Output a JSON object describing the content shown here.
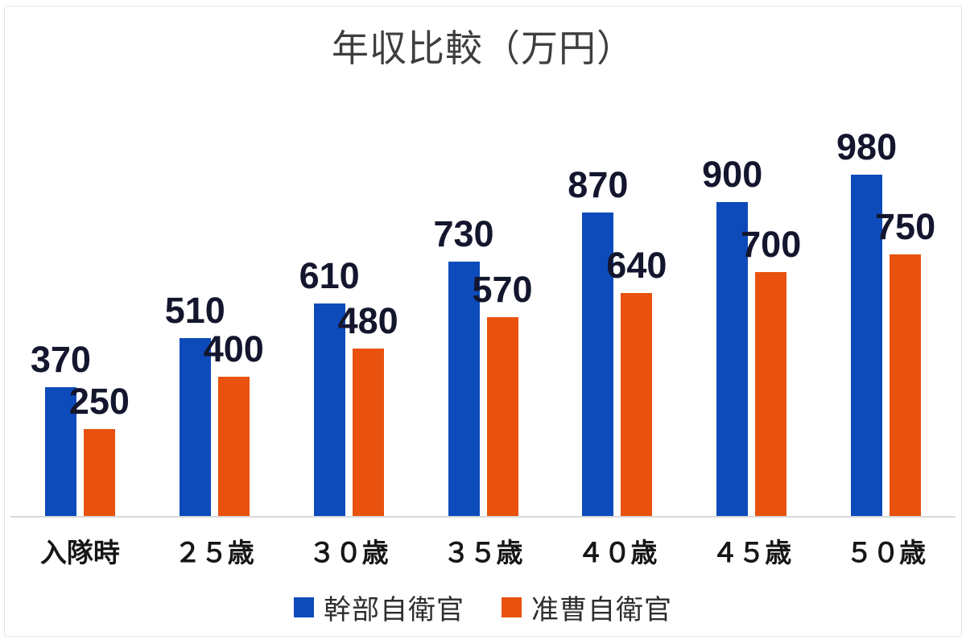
{
  "chart_data": {
    "type": "bar",
    "title": "年収比較（万円）",
    "categories": [
      "入隊時",
      "２５歳",
      "３０歳",
      "３５歳",
      "４０歳",
      "４５歳",
      "５０歳"
    ],
    "series": [
      {
        "name": "幹部自衛官",
        "color": "#0d4bbb",
        "values": [
          370,
          510,
          610,
          730,
          870,
          900,
          980
        ]
      },
      {
        "name": "准曹自衛官",
        "color": "#e8520e",
        "values": [
          250,
          400,
          480,
          570,
          640,
          700,
          750
        ]
      }
    ],
    "xlabel": "",
    "ylabel": "",
    "ylim": [
      0,
      1250
    ],
    "grid": false,
    "legend_position": "bottom",
    "data_labels": true
  },
  "colors": {
    "title_text": "#3e3e3e",
    "data_label_text": "#14162e",
    "category_label_text": "#161616",
    "axis_line": "#d9d9d9",
    "frame_border": "#e4e4e4",
    "background": "#ffffff"
  }
}
